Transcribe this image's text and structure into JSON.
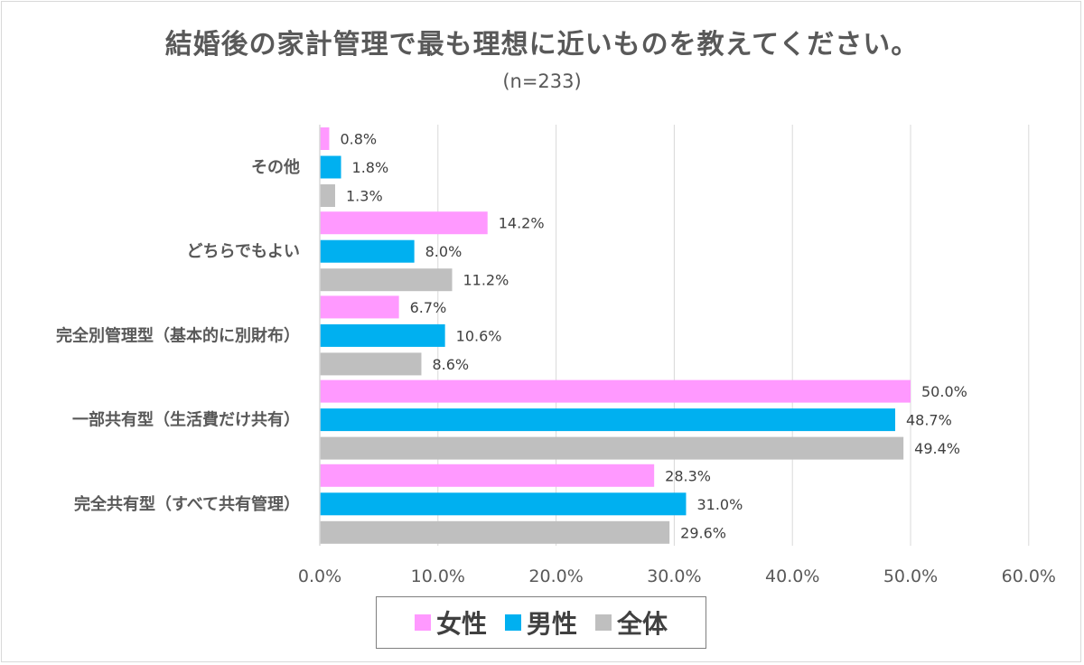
{
  "title": "結婚後の家計管理で最も理想に近いものを教えてください。",
  "subtitle": "(n=233)",
  "colors": {
    "female": "#ff99ff",
    "male": "#00b0f0",
    "total": "#bfbfbf",
    "grid": "#d9d9d9",
    "text": "#595959"
  },
  "legend": [
    {
      "label": "女性",
      "color": "#ff99ff"
    },
    {
      "label": "男性",
      "color": "#00b0f0"
    },
    {
      "label": "全体",
      "color": "#bfbfbf"
    }
  ],
  "chart_data": {
    "type": "bar",
    "orientation": "horizontal",
    "title": "結婚後の家計管理で最も理想に近いものを教えてください。",
    "subtitle": "(n=233)",
    "categories": [
      "その他",
      "どちらでもよい",
      "完全別管理型（基本的に別財布）",
      "一部共有型（生活費だけ共有）",
      "完全共有型（すべて共有管理）"
    ],
    "series": [
      {
        "name": "女性",
        "color": "#ff99ff",
        "values": [
          0.8,
          14.2,
          6.7,
          50.0,
          28.3
        ]
      },
      {
        "name": "男性",
        "color": "#00b0f0",
        "values": [
          1.8,
          8.0,
          10.6,
          48.7,
          31.0
        ]
      },
      {
        "name": "全体",
        "color": "#bfbfbf",
        "values": [
          1.3,
          11.2,
          8.6,
          49.4,
          29.6
        ]
      }
    ],
    "xlim": [
      0,
      60
    ],
    "xticks": [
      "0.0%",
      "10.0%",
      "20.0%",
      "30.0%",
      "40.0%",
      "50.0%",
      "60.0%"
    ],
    "value_suffix": "%",
    "grid": true,
    "legend_position": "bottom"
  }
}
